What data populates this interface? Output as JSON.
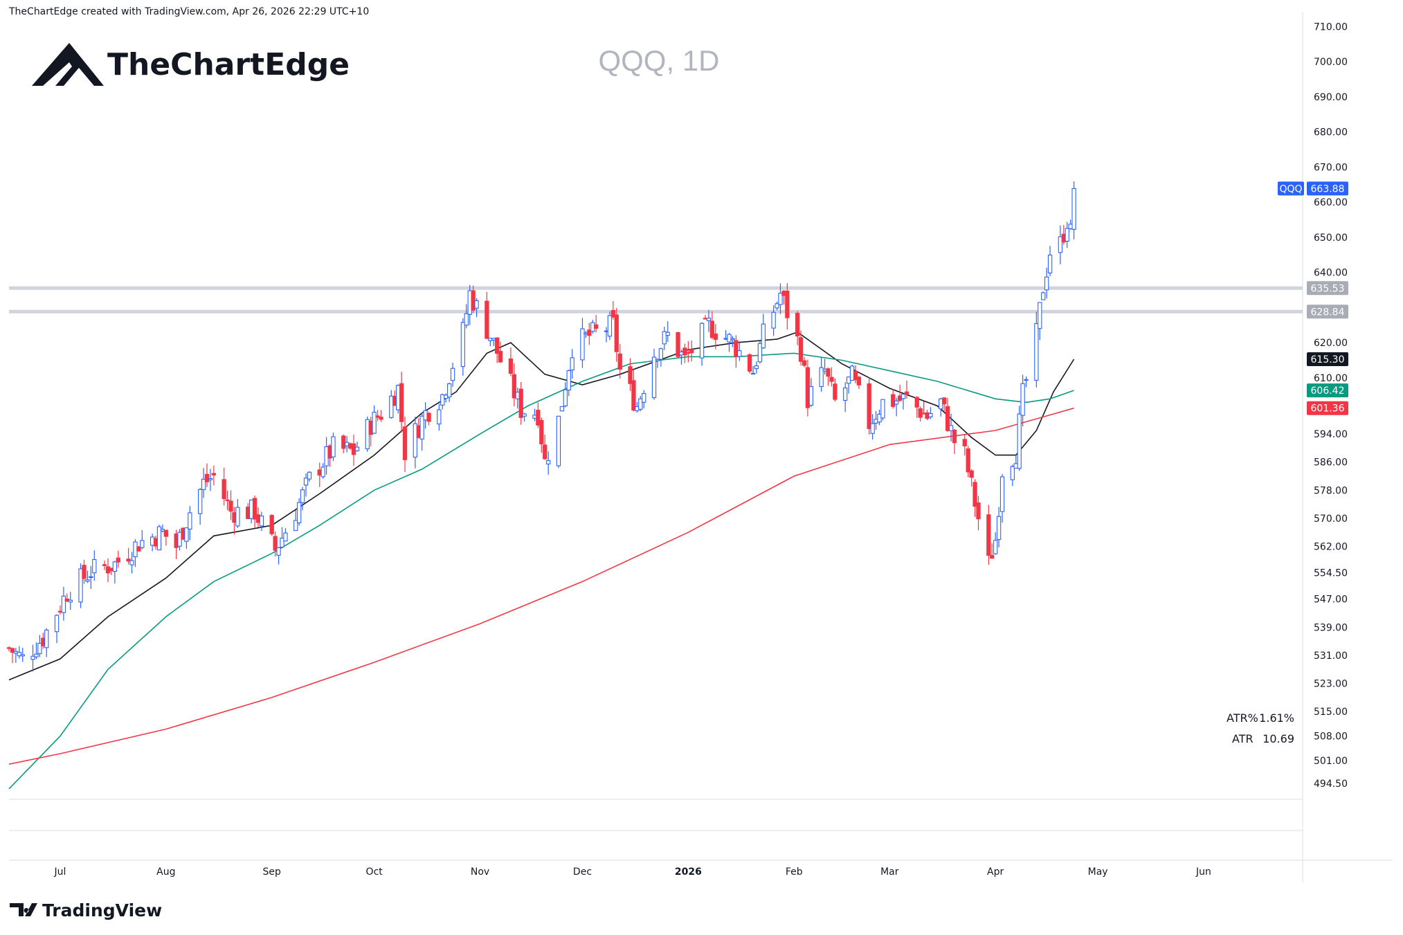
{
  "header": {
    "text": "TheChartEdge created with TradingView.com, Apr 26, 2026 22:29 UTC+10"
  },
  "brand": {
    "name": "TheChartEdge"
  },
  "watermark": {
    "text": "QQQ, 1D"
  },
  "footer": {
    "logo_text": "TradingView"
  },
  "atr": {
    "pct_label": "ATR%",
    "pct_value": "1.61%",
    "label": "ATR",
    "value": "10.69"
  },
  "colors": {
    "up": "#2962ff",
    "down": "#f23645",
    "ma_short": "#131722",
    "ma_mid": "#089981",
    "ma_long": "#f23645",
    "level_line": "#d1d4dc"
  },
  "chart_data": {
    "type": "candlestick",
    "symbol": "QQQ",
    "timeframe": "1D",
    "x_range": [
      "2025-06-16",
      "2026-06-30"
    ],
    "ylim": [
      490,
      714
    ],
    "y_ticks": [
      "710.00",
      "700.00",
      "690.00",
      "680.00",
      "670.00",
      "660.00",
      "650.00",
      "640.00",
      "620.00",
      "610.00",
      "594.00",
      "586.00",
      "578.00",
      "570.00",
      "562.00",
      "554.50",
      "547.00",
      "539.00",
      "531.00",
      "523.00",
      "515.00",
      "508.00",
      "501.00",
      "494.50"
    ],
    "x_ticks": [
      {
        "label": "Jul",
        "date": "2025-07-01"
      },
      {
        "label": "Aug",
        "date": "2025-08-01"
      },
      {
        "label": "Sep",
        "date": "2025-09-01"
      },
      {
        "label": "Oct",
        "date": "2025-10-01"
      },
      {
        "label": "Nov",
        "date": "2025-11-01"
      },
      {
        "label": "Dec",
        "date": "2025-12-01"
      },
      {
        "label": "2026",
        "date": "2026-01-01",
        "bold": true
      },
      {
        "label": "Feb",
        "date": "2026-02-01"
      },
      {
        "label": "Mar",
        "date": "2026-03-01"
      },
      {
        "label": "Apr",
        "date": "2026-04-01"
      },
      {
        "label": "May",
        "date": "2026-05-01"
      },
      {
        "label": "Jun",
        "date": "2026-06-01"
      }
    ],
    "levels": [
      {
        "value": 635.53,
        "label": "635.53"
      },
      {
        "value": 628.84,
        "label": "628.84"
      }
    ],
    "price_tags": [
      {
        "name": "QQQ",
        "value": 663.88,
        "label": "663.88",
        "color": "#2962ff"
      },
      {
        "name": "",
        "value": 615.3,
        "label": "615.30",
        "color": "#131722"
      },
      {
        "name": "",
        "value": 606.42,
        "label": "606.42",
        "color": "#089981"
      },
      {
        "name": "",
        "value": 601.36,
        "label": "601.36",
        "color": "#f23645"
      }
    ],
    "price_anchors": [
      [
        "2025-06-16",
        533
      ],
      [
        "2025-06-20",
        530
      ],
      [
        "2025-06-26",
        536
      ],
      [
        "2025-07-03",
        549
      ],
      [
        "2025-07-10",
        555
      ],
      [
        "2025-07-17",
        557
      ],
      [
        "2025-07-24",
        563
      ],
      [
        "2025-07-31",
        566
      ],
      [
        "2025-08-04",
        562
      ],
      [
        "2025-08-08",
        572
      ],
      [
        "2025-08-12",
        580
      ],
      [
        "2025-08-15",
        582
      ],
      [
        "2025-08-20",
        572
      ],
      [
        "2025-08-27",
        572
      ],
      [
        "2025-09-02",
        561
      ],
      [
        "2025-09-08",
        572
      ],
      [
        "2025-09-12",
        581
      ],
      [
        "2025-09-19",
        590
      ],
      [
        "2025-09-25",
        589
      ],
      [
        "2025-09-30",
        597
      ],
      [
        "2025-10-03",
        600
      ],
      [
        "2025-10-08",
        607
      ],
      [
        "2025-10-10",
        589
      ],
      [
        "2025-10-16",
        600
      ],
      [
        "2025-10-21",
        605
      ],
      [
        "2025-10-27",
        623
      ],
      [
        "2025-10-29",
        634
      ],
      [
        "2025-11-04",
        622
      ],
      [
        "2025-11-07",
        615
      ],
      [
        "2025-11-13",
        601
      ],
      [
        "2025-11-18",
        600
      ],
      [
        "2025-11-20",
        586
      ],
      [
        "2025-11-24",
        598
      ],
      [
        "2025-11-28",
        619
      ],
      [
        "2025-12-03",
        622
      ],
      [
        "2025-12-10",
        625
      ],
      [
        "2025-12-12",
        612
      ],
      [
        "2025-12-17",
        602
      ],
      [
        "2025-12-22",
        617
      ],
      [
        "2025-12-26",
        622
      ],
      [
        "2025-12-31",
        615
      ],
      [
        "2026-01-07",
        625
      ],
      [
        "2026-01-14",
        620
      ],
      [
        "2026-01-20",
        612
      ],
      [
        "2026-01-23",
        622
      ],
      [
        "2026-01-28",
        634
      ],
      [
        "2026-02-03",
        618
      ],
      [
        "2026-02-05",
        604
      ],
      [
        "2026-02-10",
        612
      ],
      [
        "2026-02-13",
        603
      ],
      [
        "2026-02-18",
        610
      ],
      [
        "2026-02-23",
        597
      ],
      [
        "2026-02-27",
        603
      ],
      [
        "2026-03-06",
        604
      ],
      [
        "2026-03-12",
        599
      ],
      [
        "2026-03-16",
        603
      ],
      [
        "2026-03-20",
        592
      ],
      [
        "2026-03-23",
        588
      ],
      [
        "2026-03-27",
        570
      ],
      [
        "2026-03-30",
        557
      ],
      [
        "2026-04-01",
        564
      ],
      [
        "2026-04-03",
        584
      ],
      [
        "2026-04-07",
        589
      ],
      [
        "2026-04-09",
        605
      ],
      [
        "2026-04-13",
        622
      ],
      [
        "2026-04-15",
        636
      ],
      [
        "2026-04-17",
        646
      ],
      [
        "2026-04-20",
        648
      ],
      [
        "2026-04-22",
        655
      ],
      [
        "2026-04-23",
        651
      ],
      [
        "2026-04-24",
        663.88
      ]
    ],
    "ma_series": [
      {
        "period": 20,
        "color": "#131722",
        "end_value": 615.3,
        "points": [
          [
            "2025-06-16",
            524
          ],
          [
            "2025-07-01",
            530
          ],
          [
            "2025-07-15",
            542
          ],
          [
            "2025-08-01",
            553
          ],
          [
            "2025-08-15",
            565
          ],
          [
            "2025-09-01",
            568
          ],
          [
            "2025-09-15",
            577
          ],
          [
            "2025-10-01",
            588
          ],
          [
            "2025-10-15",
            600
          ],
          [
            "2025-10-25",
            606
          ],
          [
            "2025-11-03",
            617
          ],
          [
            "2025-11-10",
            620
          ],
          [
            "2025-11-20",
            611
          ],
          [
            "2025-12-01",
            608
          ],
          [
            "2025-12-12",
            611
          ],
          [
            "2026-01-01",
            618
          ],
          [
            "2026-01-15",
            620
          ],
          [
            "2026-01-27",
            621
          ],
          [
            "2026-02-02",
            623
          ],
          [
            "2026-02-15",
            614
          ],
          [
            "2026-03-01",
            607
          ],
          [
            "2026-03-15",
            602
          ],
          [
            "2026-03-25",
            593
          ],
          [
            "2026-04-01",
            588
          ],
          [
            "2026-04-07",
            588
          ],
          [
            "2026-04-13",
            595
          ],
          [
            "2026-04-18",
            606
          ],
          [
            "2026-04-24",
            615.3
          ]
        ]
      },
      {
        "period": 50,
        "color": "#089981",
        "end_value": 606.42,
        "points": [
          [
            "2025-06-16",
            493
          ],
          [
            "2025-07-01",
            508
          ],
          [
            "2025-07-15",
            527
          ],
          [
            "2025-08-01",
            542
          ],
          [
            "2025-08-15",
            552
          ],
          [
            "2025-09-01",
            560
          ],
          [
            "2025-09-15",
            568
          ],
          [
            "2025-10-01",
            578
          ],
          [
            "2025-10-15",
            584
          ],
          [
            "2025-11-01",
            594
          ],
          [
            "2025-11-15",
            602
          ],
          [
            "2025-12-01",
            609
          ],
          [
            "2025-12-15",
            614
          ],
          [
            "2026-01-01",
            616
          ],
          [
            "2026-01-15",
            616
          ],
          [
            "2026-02-01",
            617
          ],
          [
            "2026-02-15",
            615
          ],
          [
            "2026-03-01",
            612
          ],
          [
            "2026-03-15",
            609
          ],
          [
            "2026-04-01",
            604
          ],
          [
            "2026-04-10",
            603
          ],
          [
            "2026-04-17",
            604
          ],
          [
            "2026-04-24",
            606.42
          ]
        ]
      },
      {
        "period": 200,
        "color": "#f23645",
        "end_value": 601.36,
        "points": [
          [
            "2025-06-16",
            500
          ],
          [
            "2025-07-01",
            503
          ],
          [
            "2025-08-01",
            510
          ],
          [
            "2025-09-01",
            519
          ],
          [
            "2025-10-01",
            529
          ],
          [
            "2025-11-01",
            540
          ],
          [
            "2025-12-01",
            552
          ],
          [
            "2026-01-01",
            566
          ],
          [
            "2026-02-01",
            582
          ],
          [
            "2026-03-01",
            591
          ],
          [
            "2026-04-01",
            595
          ],
          [
            "2026-04-24",
            601.36
          ]
        ]
      }
    ]
  }
}
